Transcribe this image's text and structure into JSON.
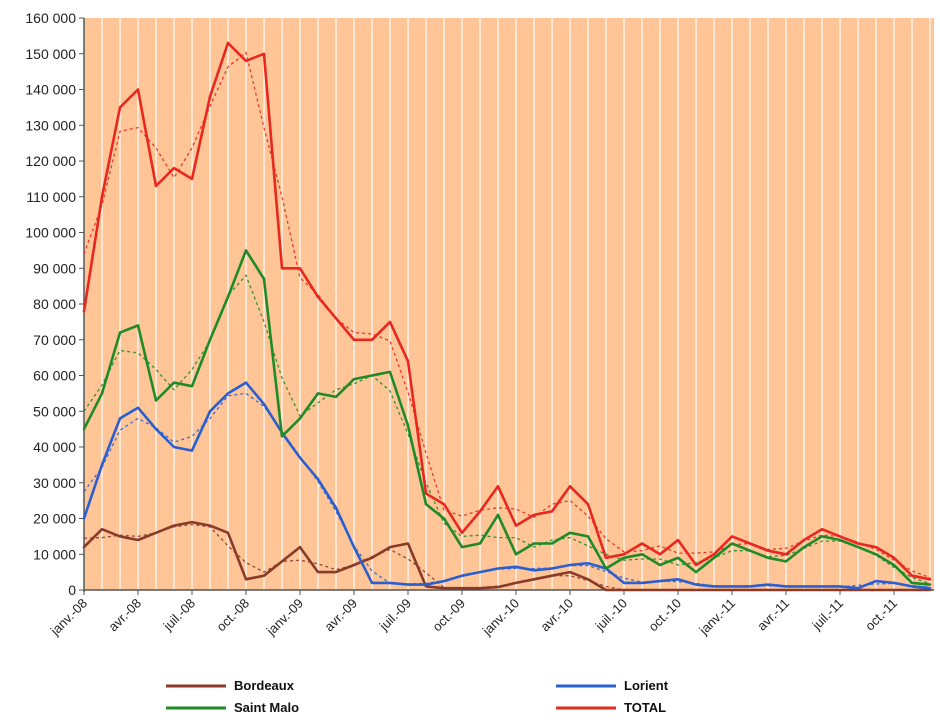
{
  "chart_data": {
    "type": "line",
    "title": "",
    "xlabel": "",
    "ylabel": "",
    "ylim": [
      0,
      160000
    ],
    "yticks": [
      0,
      10000,
      20000,
      30000,
      40000,
      50000,
      60000,
      70000,
      80000,
      90000,
      100000,
      110000,
      120000,
      130000,
      140000,
      150000,
      160000
    ],
    "ytick_labels": [
      "0",
      "10 000",
      "20 000",
      "30 000",
      "40 000",
      "50 000",
      "60 000",
      "70 000",
      "80 000",
      "90 000",
      "100 000",
      "110 000",
      "120 000",
      "130 000",
      "140 000",
      "150 000",
      "160 000"
    ],
    "xlim": [
      "2008-01",
      "2011-12"
    ],
    "xticks": [
      "2008-01",
      "2008-04",
      "2008-07",
      "2008-10",
      "2009-01",
      "2009-04",
      "2009-07",
      "2009-10",
      "2010-01",
      "2010-04",
      "2010-07",
      "2010-10",
      "2011-01",
      "2011-04",
      "2011-07",
      "2011-10"
    ],
    "xtick_labels": [
      "janv.-08",
      "avr.-08",
      "juil.-08",
      "oct.-08",
      "janv.-09",
      "avr.-09",
      "juil.-09",
      "oct.-09",
      "janv.-10",
      "avr.-10",
      "juil.-10",
      "oct.-10",
      "janv.-11",
      "avr.-11",
      "juil.-11",
      "oct.-11"
    ],
    "grid": "vertical",
    "legend_position": "bottom",
    "background": "#ffc597",
    "trend_lines": "dotted",
    "series": [
      {
        "name": "Bordeaux",
        "color": "#8a3a2a",
        "x": [
          "2008-01",
          "2008-02",
          "2008-03",
          "2008-04",
          "2008-05",
          "2008-06",
          "2008-07",
          "2008-08",
          "2008-09",
          "2008-10",
          "2008-11",
          "2008-12",
          "2009-01",
          "2009-02",
          "2009-03",
          "2009-04",
          "2009-05",
          "2009-06",
          "2009-07",
          "2009-08",
          "2009-09",
          "2009-10",
          "2009-11",
          "2009-12",
          "2010-01",
          "2010-02",
          "2010-03",
          "2010-04",
          "2010-05",
          "2010-06",
          "2010-07",
          "2010-08",
          "2010-09",
          "2010-10",
          "2010-11",
          "2010-12",
          "2011-01",
          "2011-02",
          "2011-03",
          "2011-04",
          "2011-05",
          "2011-06",
          "2011-07",
          "2011-08",
          "2011-09",
          "2011-10",
          "2011-11",
          "2011-12"
        ],
        "values": [
          12000,
          17000,
          15000,
          14000,
          16000,
          18000,
          19000,
          18000,
          16000,
          3000,
          4000,
          8000,
          12000,
          5000,
          5000,
          7000,
          9000,
          12000,
          13000,
          1000,
          500,
          500,
          500,
          800,
          2000,
          3000,
          4000,
          5000,
          3000,
          0,
          0,
          0,
          0,
          0,
          0,
          0,
          0,
          0,
          0,
          0,
          0,
          0,
          0,
          0,
          0,
          0,
          0,
          0
        ]
      },
      {
        "name": "Lorient",
        "color": "#2a5fd0",
        "x": [
          "2008-01",
          "2008-02",
          "2008-03",
          "2008-04",
          "2008-05",
          "2008-06",
          "2008-07",
          "2008-08",
          "2008-09",
          "2008-10",
          "2008-11",
          "2008-12",
          "2009-01",
          "2009-02",
          "2009-03",
          "2009-04",
          "2009-05",
          "2009-06",
          "2009-07",
          "2009-08",
          "2009-09",
          "2009-10",
          "2009-11",
          "2009-12",
          "2010-01",
          "2010-02",
          "2010-03",
          "2010-04",
          "2010-05",
          "2010-06",
          "2010-07",
          "2010-08",
          "2010-09",
          "2010-10",
          "2010-11",
          "2010-12",
          "2011-01",
          "2011-02",
          "2011-03",
          "2011-04",
          "2011-05",
          "2011-06",
          "2011-07",
          "2011-08",
          "2011-09",
          "2011-10",
          "2011-11",
          "2011-12"
        ],
        "values": [
          20000,
          35000,
          48000,
          51000,
          45000,
          40000,
          39000,
          50000,
          55000,
          58000,
          52000,
          44000,
          37000,
          31000,
          23000,
          12000,
          2000,
          2000,
          1500,
          1500,
          2500,
          4000,
          5000,
          6000,
          6500,
          5500,
          6000,
          7000,
          7500,
          6000,
          2000,
          2000,
          2500,
          3000,
          1500,
          1000,
          1000,
          1000,
          1500,
          1000,
          1000,
          1000,
          1000,
          500,
          2500,
          2000,
          1000,
          500
        ]
      },
      {
        "name": "Saint Malo",
        "color": "#1f8a28",
        "x": [
          "2008-01",
          "2008-02",
          "2008-03",
          "2008-04",
          "2008-05",
          "2008-06",
          "2008-07",
          "2008-08",
          "2008-09",
          "2008-10",
          "2008-11",
          "2008-12",
          "2009-01",
          "2009-02",
          "2009-03",
          "2009-04",
          "2009-05",
          "2009-06",
          "2009-07",
          "2009-08",
          "2009-09",
          "2009-10",
          "2009-11",
          "2009-12",
          "2010-01",
          "2010-02",
          "2010-03",
          "2010-04",
          "2010-05",
          "2010-06",
          "2010-07",
          "2010-08",
          "2010-09",
          "2010-10",
          "2010-11",
          "2010-12",
          "2011-01",
          "2011-02",
          "2011-03",
          "2011-04",
          "2011-05",
          "2011-06",
          "2011-07",
          "2011-08",
          "2011-09",
          "2011-10",
          "2011-11",
          "2011-12"
        ],
        "values": [
          45000,
          55000,
          72000,
          74000,
          53000,
          58000,
          57000,
          70000,
          82000,
          95000,
          87000,
          43000,
          48000,
          55000,
          54000,
          59000,
          60000,
          61000,
          46000,
          24000,
          20000,
          12000,
          13000,
          21000,
          10000,
          13000,
          13000,
          16000,
          15000,
          6000,
          9000,
          10000,
          7000,
          9000,
          5000,
          9000,
          13000,
          11000,
          9000,
          8000,
          12000,
          15000,
          14000,
          12000,
          10000,
          7000,
          2000,
          1500
        ]
      },
      {
        "name": "TOTAL",
        "color": "#e8281e",
        "x": [
          "2008-01",
          "2008-02",
          "2008-03",
          "2008-04",
          "2008-05",
          "2008-06",
          "2008-07",
          "2008-08",
          "2008-09",
          "2008-10",
          "2008-11",
          "2008-12",
          "2009-01",
          "2009-02",
          "2009-03",
          "2009-04",
          "2009-05",
          "2009-06",
          "2009-07",
          "2009-08",
          "2009-09",
          "2009-10",
          "2009-11",
          "2009-12",
          "2010-01",
          "2010-02",
          "2010-03",
          "2010-04",
          "2010-05",
          "2010-06",
          "2010-07",
          "2010-08",
          "2010-09",
          "2010-10",
          "2010-11",
          "2010-12",
          "2011-01",
          "2011-02",
          "2011-03",
          "2011-04",
          "2011-05",
          "2011-06",
          "2011-07",
          "2011-08",
          "2011-09",
          "2011-10",
          "2011-11",
          "2011-12"
        ],
        "values": [
          78000,
          110000,
          135000,
          140000,
          113000,
          118000,
          115000,
          138000,
          153000,
          148000,
          150000,
          90000,
          90000,
          82000,
          76000,
          70000,
          70000,
          75000,
          64000,
          27000,
          24000,
          16000,
          22000,
          29000,
          18000,
          21000,
          22000,
          29000,
          24000,
          9000,
          10000,
          13000,
          10000,
          14000,
          7000,
          10000,
          15000,
          13000,
          11000,
          10000,
          14000,
          17000,
          15000,
          13000,
          12000,
          9000,
          4000,
          3000
        ]
      }
    ]
  }
}
